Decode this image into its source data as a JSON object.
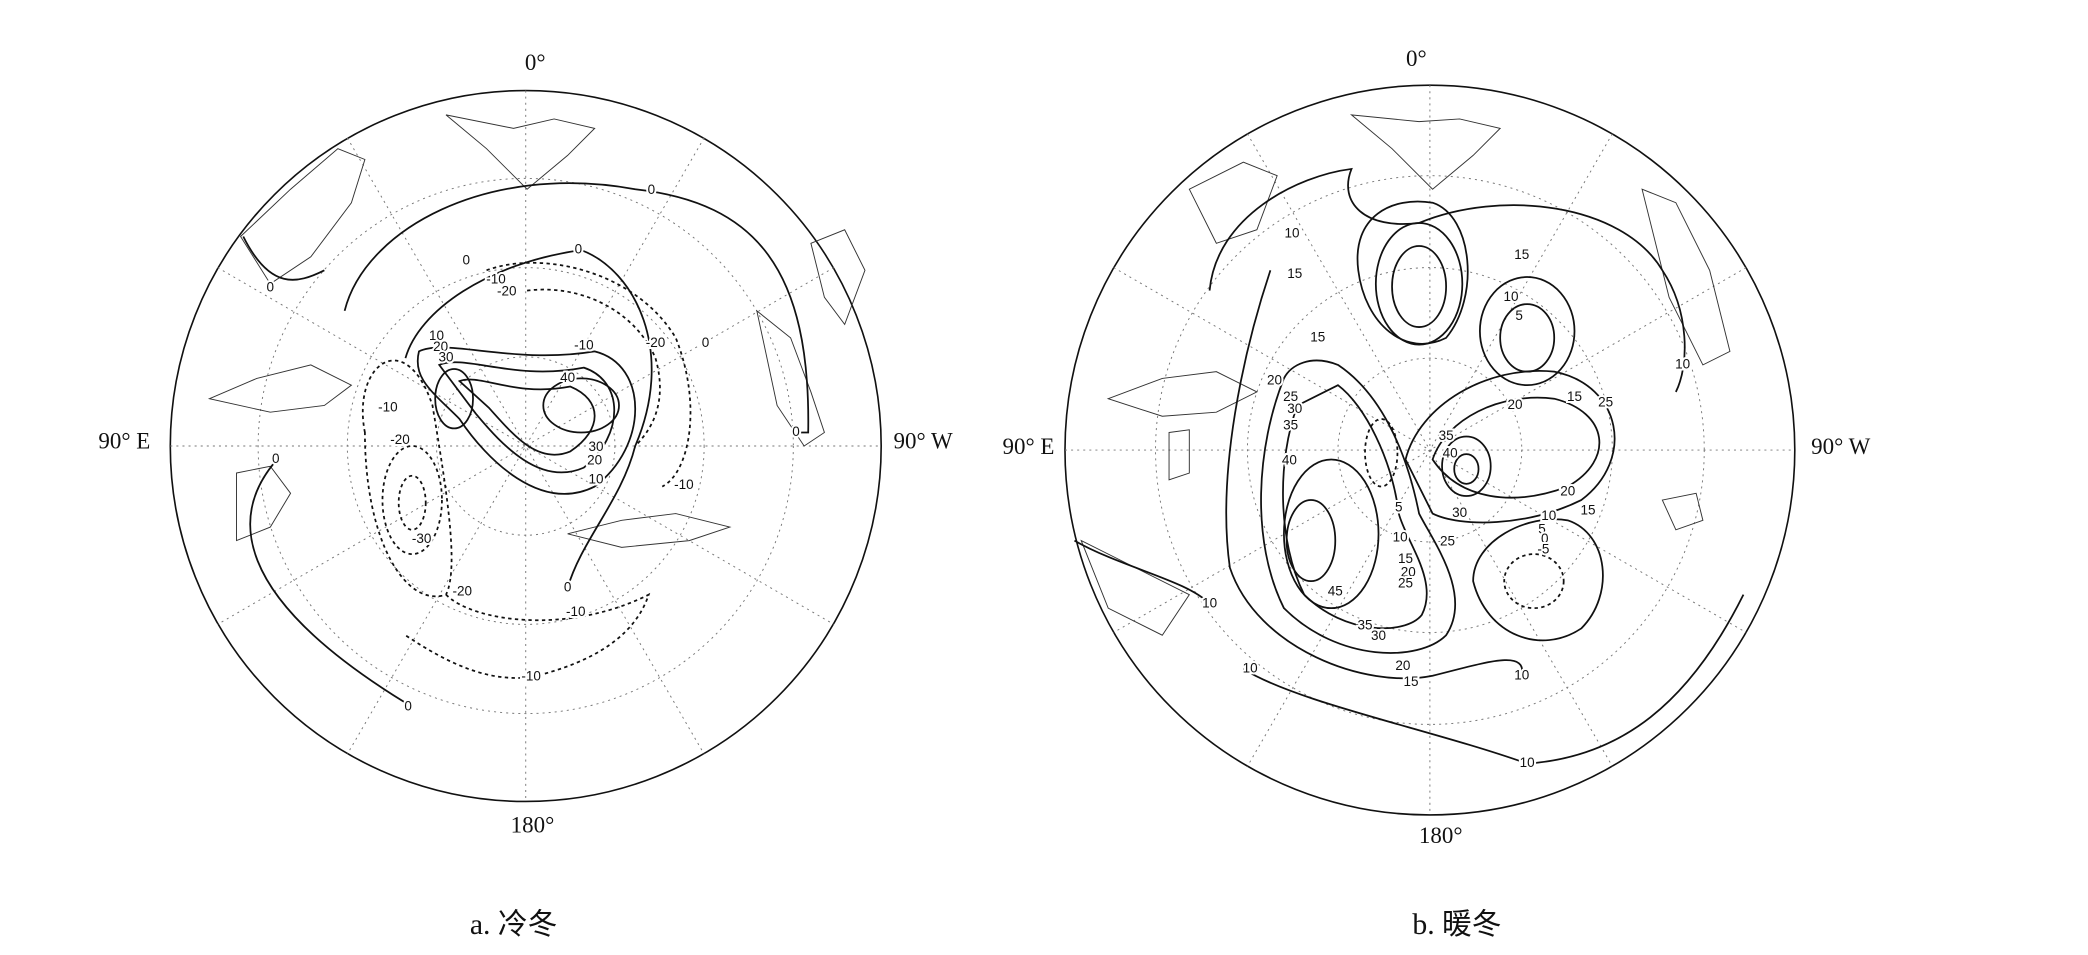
{
  "panels": [
    {
      "top_label": "0°",
      "left_label": "90° E",
      "right_label": "90° W",
      "bottom_label": "180°",
      "caption": "a. 冷冬",
      "contour_labels": [
        0,
        0,
        0,
        0,
        -10,
        -20,
        10,
        20,
        30,
        40,
        -10,
        -20,
        0,
        -10,
        -20,
        0,
        -30,
        -20,
        -10,
        0,
        -10,
        30,
        20,
        10,
        -10,
        0,
        0
      ]
    },
    {
      "top_label": "0°",
      "left_label": "90° E",
      "right_label": "90° W",
      "bottom_label": "180°",
      "caption": "b. 暖冬",
      "contour_labels": [
        10,
        15,
        15,
        10,
        5,
        15,
        10,
        20,
        25,
        30,
        35,
        40,
        25,
        15,
        20,
        35,
        40,
        20,
        15,
        10,
        5,
        0,
        -5,
        30,
        25,
        5,
        10,
        15,
        20,
        25,
        45,
        35,
        30,
        20,
        15,
        10,
        10,
        10,
        10
      ]
    }
  ]
}
